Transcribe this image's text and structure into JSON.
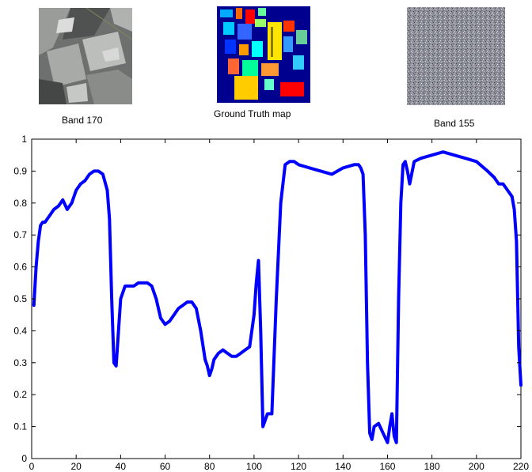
{
  "thumbnails": [
    {
      "label": "Band 170",
      "icon": "grayscale-band-image"
    },
    {
      "label": "Ground Truth map",
      "icon": "classification-color-map"
    },
    {
      "label": "Band 155",
      "icon": "noise-band-image"
    }
  ],
  "colors": {
    "line": "#0000ff",
    "axis": "#000000"
  },
  "chart_data": {
    "type": "line",
    "title": "",
    "xlabel": "",
    "ylabel": "",
    "xlim": [
      0,
      220
    ],
    "ylim": [
      0,
      1
    ],
    "xticks": [
      0,
      20,
      40,
      60,
      80,
      100,
      120,
      140,
      160,
      180,
      200,
      220
    ],
    "yticks": [
      0,
      0.1,
      0.2,
      0.3,
      0.4,
      0.5,
      0.6,
      0.7,
      0.8,
      0.9,
      1
    ],
    "xtick_labels": [
      "0",
      "20",
      "40",
      "60",
      "80",
      "100",
      "120",
      "140",
      "160",
      "180",
      "200",
      "220"
    ],
    "ytick_labels": [
      "0",
      "0.1",
      "0.2",
      "0.3",
      "0.4",
      "0.5",
      "0.6",
      "0.7",
      "0.8",
      "0.9",
      "1"
    ],
    "grid": false,
    "series": [
      {
        "x": [
          1,
          2,
          3,
          4,
          5,
          6,
          8,
          10,
          12,
          14,
          16,
          18,
          20,
          22,
          24,
          26,
          28,
          30,
          32,
          34,
          35,
          36,
          37,
          38,
          40,
          42,
          44,
          46,
          48,
          50,
          52,
          54,
          56,
          58,
          60,
          62,
          64,
          66,
          68,
          70,
          72,
          74,
          76,
          78,
          79,
          80,
          81,
          82,
          84,
          86,
          88,
          90,
          92,
          94,
          96,
          98,
          100,
          101,
          102,
          103,
          104,
          106,
          108,
          110,
          112,
          114,
          116,
          118,
          120,
          125,
          130,
          135,
          140,
          145,
          147,
          148,
          149,
          150,
          151,
          152,
          153,
          154,
          156,
          158,
          160,
          161,
          162,
          163,
          164,
          165,
          166,
          167,
          168,
          169,
          170,
          172,
          175,
          180,
          185,
          190,
          195,
          200,
          205,
          208,
          210,
          212,
          213,
          214,
          215,
          216,
          217,
          218,
          219,
          220
        ],
        "y": [
          0.48,
          0.6,
          0.68,
          0.73,
          0.74,
          0.74,
          0.76,
          0.78,
          0.79,
          0.81,
          0.78,
          0.8,
          0.84,
          0.86,
          0.87,
          0.89,
          0.9,
          0.9,
          0.89,
          0.84,
          0.75,
          0.5,
          0.3,
          0.29,
          0.5,
          0.54,
          0.54,
          0.54,
          0.55,
          0.55,
          0.55,
          0.54,
          0.5,
          0.44,
          0.42,
          0.43,
          0.45,
          0.47,
          0.48,
          0.49,
          0.49,
          0.47,
          0.4,
          0.31,
          0.29,
          0.26,
          0.28,
          0.31,
          0.33,
          0.34,
          0.33,
          0.32,
          0.32,
          0.33,
          0.34,
          0.35,
          0.45,
          0.55,
          0.62,
          0.4,
          0.1,
          0.14,
          0.14,
          0.5,
          0.8,
          0.92,
          0.93,
          0.93,
          0.92,
          0.91,
          0.9,
          0.89,
          0.91,
          0.92,
          0.92,
          0.91,
          0.89,
          0.7,
          0.3,
          0.08,
          0.06,
          0.1,
          0.11,
          0.08,
          0.05,
          0.1,
          0.14,
          0.07,
          0.05,
          0.5,
          0.8,
          0.92,
          0.93,
          0.9,
          0.86,
          0.93,
          0.94,
          0.95,
          0.96,
          0.95,
          0.94,
          0.93,
          0.9,
          0.88,
          0.86,
          0.86,
          0.85,
          0.84,
          0.83,
          0.82,
          0.78,
          0.68,
          0.35,
          0.23
        ]
      }
    ]
  }
}
